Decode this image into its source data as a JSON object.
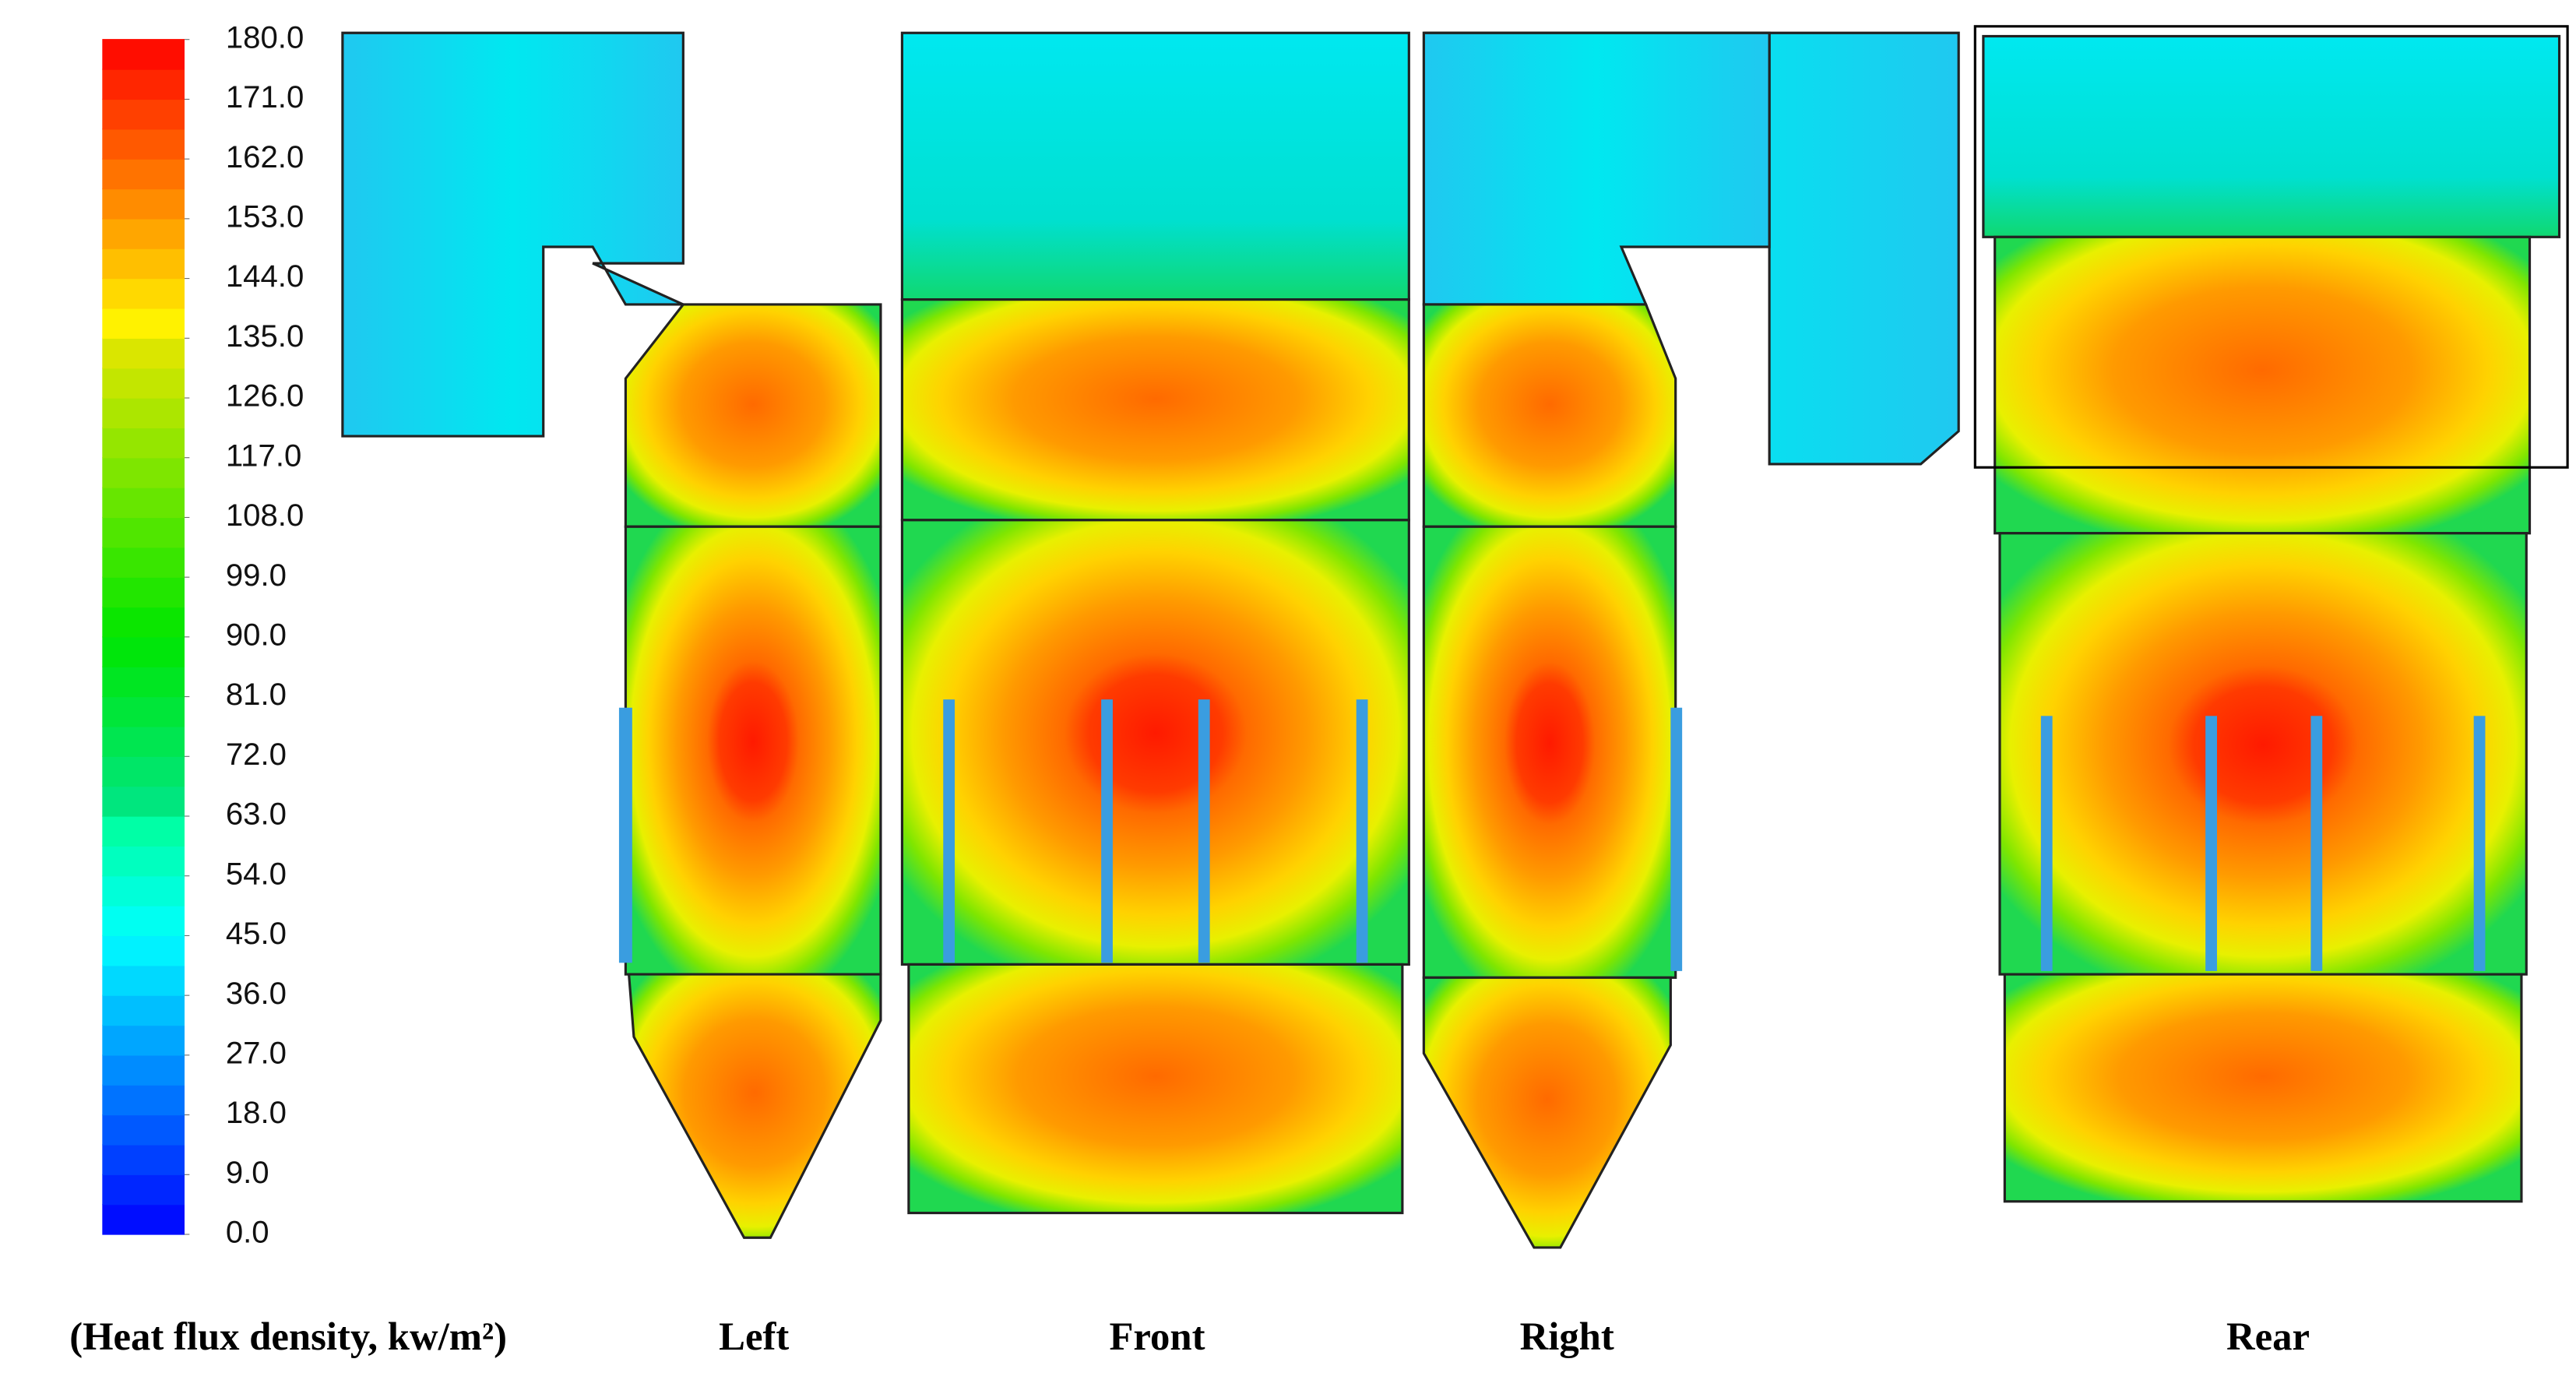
{
  "colorbar": {
    "range": [
      0,
      180
    ],
    "ticks": [
      {
        "value": 180,
        "label": "180.0"
      },
      {
        "value": 171,
        "label": "171.0"
      },
      {
        "value": 162,
        "label": "162.0"
      },
      {
        "value": 153,
        "label": "153.0"
      },
      {
        "value": 144,
        "label": "144.0"
      },
      {
        "value": 135,
        "label": "135.0"
      },
      {
        "value": 126,
        "label": "126.0"
      },
      {
        "value": 117,
        "label": "117.0"
      },
      {
        "value": 108,
        "label": "108.0"
      },
      {
        "value": 99,
        "label": "99.0"
      },
      {
        "value": 90,
        "label": "90.0"
      },
      {
        "value": 81,
        "label": "81.0"
      },
      {
        "value": 72,
        "label": "72.0"
      },
      {
        "value": 63,
        "label": "63.0"
      },
      {
        "value": 54,
        "label": "54.0"
      },
      {
        "value": 45,
        "label": "45.0"
      },
      {
        "value": 36,
        "label": "36.0"
      },
      {
        "value": 27,
        "label": "27.0"
      },
      {
        "value": 18,
        "label": "18.0"
      },
      {
        "value": 9,
        "label": "9.0"
      },
      {
        "value": 0,
        "label": "0.0"
      }
    ],
    "unit_label": "(Heat flux density, kw/m²)"
  },
  "panels": [
    "Left",
    "Front",
    "Right",
    "Rear"
  ]
}
